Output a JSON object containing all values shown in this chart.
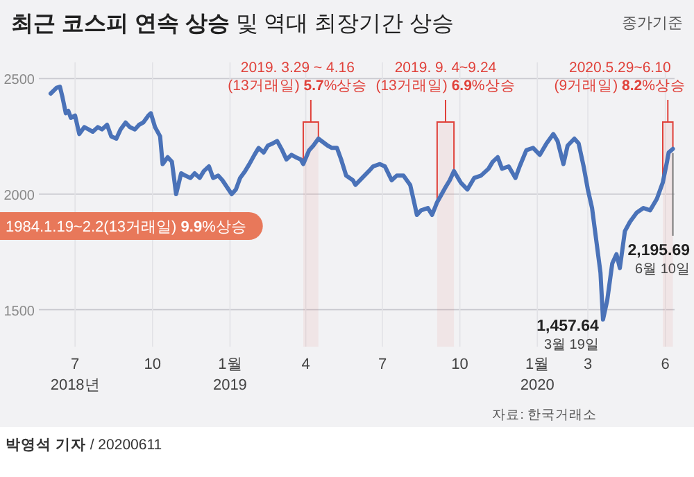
{
  "chart_data": {
    "type": "line",
    "title": "**최근 코스피 연속 상승** 및 역대 최장기간 상승",
    "subtitle": "종가기준",
    "x": [
      "2018-06-02",
      "2018-06-09",
      "2018-06-13",
      "2018-06-16",
      "2018-06-20",
      "2018-06-23",
      "2018-06-26",
      "2018-07-01",
      "2018-07-06",
      "2018-07-12",
      "2018-07-17",
      "2018-07-22",
      "2018-07-28",
      "2018-08-02",
      "2018-08-08",
      "2018-08-13",
      "2018-08-19",
      "2018-08-24",
      "2018-08-30",
      "2018-09-04",
      "2018-09-10",
      "2018-09-15",
      "2018-09-20",
      "2018-09-26",
      "2018-09-29",
      "2018-10-04",
      "2018-10-10",
      "2018-10-13",
      "2018-10-19",
      "2018-10-24",
      "2018-10-29",
      "2018-11-04",
      "2018-11-09",
      "2018-11-15",
      "2018-11-20",
      "2018-11-26",
      "2018-12-01",
      "2018-12-07",
      "2018-12-12",
      "2018-12-18",
      "2018-12-23",
      "2019-01-03",
      "2019-01-08",
      "2019-01-13",
      "2019-01-19",
      "2019-01-24",
      "2019-01-30",
      "2019-02-04",
      "2019-02-10",
      "2019-02-15",
      "2019-02-21",
      "2019-02-26",
      "2019-03-04",
      "2019-03-09",
      "2019-03-15",
      "2019-03-20",
      "2019-03-26",
      "2019-03-29",
      "2019-04-05",
      "2019-04-10",
      "2019-04-16",
      "2019-04-27",
      "2019-05-02",
      "2019-05-08",
      "2019-05-13",
      "2019-05-19",
      "2019-05-27",
      "2019-05-30",
      "2019-06-07",
      "2019-06-15",
      "2019-06-20",
      "2019-06-28",
      "2019-07-04",
      "2019-07-12",
      "2019-07-18",
      "2019-07-26",
      "2019-08-03",
      "2019-08-08",
      "2019-08-11",
      "2019-08-16",
      "2019-08-24",
      "2019-08-29",
      "2019-09-04",
      "2019-09-14",
      "2019-09-19",
      "2019-09-24",
      "2019-10-02",
      "2019-10-10",
      "2019-10-18",
      "2019-10-26",
      "2019-11-04",
      "2019-11-09",
      "2019-11-15",
      "2019-11-20",
      "2019-11-28",
      "2019-12-06",
      "2019-12-11",
      "2019-12-19",
      "2019-12-27",
      "2020-01-04",
      "2020-01-12",
      "2020-01-20",
      "2020-01-25",
      "2020-02-01",
      "2020-02-06",
      "2020-02-14",
      "2020-02-19",
      "2020-02-25",
      "2020-03-01",
      "2020-03-06",
      "2020-03-11",
      "2020-03-16",
      "2020-03-19",
      "2020-03-24",
      "2020-03-30",
      "2020-04-04",
      "2020-04-08",
      "2020-04-14",
      "2020-04-20",
      "2020-04-28",
      "2020-05-06",
      "2020-05-14",
      "2020-05-22",
      "2020-05-29",
      "2020-06-03",
      "2020-06-05",
      "2020-06-10"
    ],
    "series": [
      {
        "color": "#4a72b8",
        "values": [
          2435,
          2460,
          2465,
          2420,
          2350,
          2360,
          2330,
          2340,
          2260,
          2290,
          2280,
          2270,
          2290,
          2280,
          2300,
          2250,
          2240,
          2280,
          2310,
          2290,
          2280,
          2300,
          2310,
          2340,
          2350,
          2290,
          2250,
          2130,
          2160,
          2140,
          2000,
          2090,
          2080,
          2070,
          2090,
          2070,
          2100,
          2120,
          2070,
          2080,
          2060,
          2000,
          2020,
          2070,
          2100,
          2130,
          2170,
          2200,
          2180,
          2210,
          2220,
          2230,
          2190,
          2150,
          2170,
          2160,
          2150,
          2130,
          2190,
          2210,
          2240,
          2210,
          2200,
          2200,
          2150,
          2080,
          2060,
          2040,
          2070,
          2100,
          2120,
          2130,
          2120,
          2060,
          2080,
          2080,
          2040,
          1960,
          1910,
          1930,
          1940,
          1910,
          1965,
          2030,
          2060,
          2100,
          2050,
          2020,
          2070,
          2080,
          2110,
          2140,
          2160,
          2110,
          2120,
          2070,
          2120,
          2190,
          2200,
          2170,
          2220,
          2260,
          2230,
          2130,
          2210,
          2240,
          2220,
          2120,
          2020,
          1940,
          1800,
          1660,
          1457.64,
          1540,
          1700,
          1740,
          1680,
          1840,
          1880,
          1920,
          1940,
          1930,
          1980,
          2050,
          2140,
          2180,
          2195.69
        ]
      }
    ],
    "xlim": [
      "2018-05-19",
      "2020-06-12"
    ],
    "ylim": [
      1340,
      2570
    ],
    "yticks": [
      1500,
      2000,
      2500
    ],
    "xticks": [
      {
        "value": "2018-07-01",
        "label": "7\n2018년"
      },
      {
        "value": "2018-10-01",
        "label": "10"
      },
      {
        "value": "2019-01-01",
        "label": "1월\n2019"
      },
      {
        "value": "2019-04-01",
        "label": "4"
      },
      {
        "value": "2019-07-01",
        "label": "7"
      },
      {
        "value": "2019-10-01",
        "label": "10"
      },
      {
        "value": "2020-01-01",
        "label": "1월\n2020"
      },
      {
        "value": "2020-03-01",
        "label": "3"
      },
      {
        "value": "2020-06-01",
        "label": "6"
      }
    ],
    "grid": true,
    "marker": "none",
    "line_style": "solid",
    "bands": [
      {
        "axis": "x",
        "from": "2019-03-29",
        "to": "2019-04-16",
        "label": "2019. 3.29 ~ 4.16\n(13거래일) **5.7**%상승",
        "color": "#e0413a"
      },
      {
        "axis": "x",
        "from": "2019-09-04",
        "to": "2019-09-24",
        "label": "2019. 9. 4~9.24\n(13거래일) **6.9**%상승",
        "color": "#e0413a"
      },
      {
        "axis": "x",
        "from": "2020-05-29",
        "to": "2020-06-10",
        "label": "2020.5.29~6.10\n(9거래일) **8.2**%상승",
        "color": "#e0413a"
      }
    ],
    "annotations": [
      "1984.1.19~2.2(13거래일) **9.9**%상승",
      "자료: 한국거래소",
      "**박영석 기자** / 20200611",
      {
        "text": "1,457.64\n3월 19일",
        "x": "2020-03-19",
        "y": 1457.64
      },
      {
        "text": "2,195.69\n6월 10일",
        "x": "2020-06-10",
        "y": 2195.69
      }
    ]
  }
}
